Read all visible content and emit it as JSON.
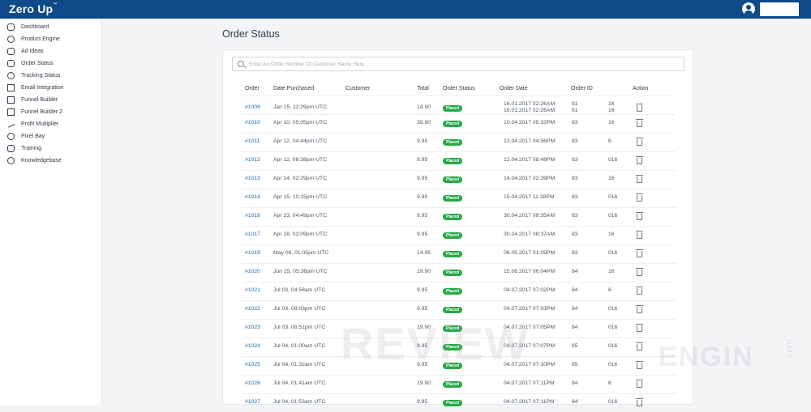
{
  "header": {
    "logo": "Zero Up",
    "logo_tm": "™"
  },
  "sidebar": {
    "items": [
      {
        "label": "Dashboard",
        "icon": "home-icon"
      },
      {
        "label": "Product Engine",
        "icon": "bell-icon"
      },
      {
        "label": "Ad Ideas",
        "icon": "image-icon"
      },
      {
        "label": "Order Status",
        "icon": "box-icon"
      },
      {
        "label": "Tracking Status",
        "icon": "location-icon"
      },
      {
        "label": "Email Integration",
        "icon": "mail-icon"
      },
      {
        "label": "Funnel Builder",
        "icon": "layout-icon"
      },
      {
        "label": "Funnel Builder 2",
        "icon": "layout-icon"
      },
      {
        "label": "Profit Multiplier",
        "icon": "trend-icon"
      },
      {
        "label": "Pixel Bay",
        "icon": "pixel-icon"
      },
      {
        "label": "Training",
        "icon": "training-icon"
      },
      {
        "label": "Knowledgebase",
        "icon": "info-icon"
      }
    ]
  },
  "main": {
    "title": "Order Status",
    "search_placeholder": "Enter An Order Number Or Customer Name Here",
    "columns": [
      "Order",
      "Date Purchased",
      "Customer",
      "Total",
      "Order Status",
      "Order Date",
      "Order ID",
      "Action"
    ],
    "rows": [
      {
        "order": "#1009",
        "date": "Jan 15, 11:29pm UTC",
        "total": "14.90",
        "status": "Placed",
        "order_date": "16.01.2017 02:26AM",
        "order_date2": "16.01.2017 02:26AM",
        "id1": "81",
        "id2": "16",
        "id1b": "81",
        "id2b": "16"
      },
      {
        "order": "#1010",
        "date": "Apr 10, 05:05pm UTC",
        "total": "39.80",
        "status": "Placed",
        "order_date": "10.04.2017 05:32PM",
        "id1": "83",
        "id2": "16"
      },
      {
        "order": "#1011",
        "date": "Apr 12, 04:44pm UTC",
        "total": "9.95",
        "status": "Placed",
        "order_date": "12.04.2017 04:56PM",
        "id1": "83",
        "id2": "6"
      },
      {
        "order": "#1012",
        "date": "Apr 12, 08:38pm UTC",
        "total": "9.95",
        "status": "Placed",
        "order_date": "12.04.2017 08:48PM",
        "id1": "83",
        "id2": "016"
      },
      {
        "order": "#1013",
        "date": "Apr 14, 02:29pm UTC",
        "total": "9.95",
        "status": "Placed",
        "order_date": "14.04.2017 02:39PM",
        "id1": "83",
        "id2": "16"
      },
      {
        "order": "#1014",
        "date": "Apr 15, 10:15pm UTC",
        "total": "9.95",
        "status": "Placed",
        "order_date": "15.04.2017 11:28PM",
        "id1": "83",
        "id2": "016"
      },
      {
        "order": "#1016",
        "date": "Apr 23, 04:49pm UTC",
        "total": "9.95",
        "status": "Placed",
        "order_date": "30.04.2017 08:35AM",
        "id1": "83",
        "id2": "016"
      },
      {
        "order": "#1017",
        "date": "Apr 28, 03:09pm UTC",
        "total": "9.95",
        "status": "Placed",
        "order_date": "30.04.2017 08:37AM",
        "id1": "83",
        "id2": "16"
      },
      {
        "order": "#1019",
        "date": "May 06, 01:05pm UTC",
        "total": "14.95",
        "status": "Placed",
        "order_date": "06.05.2017 01:09PM",
        "id1": "83",
        "id2": "016"
      },
      {
        "order": "#1020",
        "date": "Jun 15, 05:36pm UTC",
        "total": "19.90",
        "status": "Placed",
        "order_date": "15.06.2017 06:04PM",
        "id1": "84",
        "id2": "16"
      },
      {
        "order": "#1021",
        "date": "Jul 03, 04:58am UTC",
        "total": "9.95",
        "status": "Placed",
        "order_date": "04.07.2017 07:02PM",
        "id1": "84",
        "id2": "6"
      },
      {
        "order": "#1022",
        "date": "Jul 03, 08:03pm UTC",
        "total": "9.95",
        "status": "Placed",
        "order_date": "04.07.2017 07:03PM",
        "id1": "84",
        "id2": "016"
      },
      {
        "order": "#1023",
        "date": "Jul 03, 08:51pm UTC",
        "total": "19.90",
        "status": "Placed",
        "order_date": "04.07.2017 07:05PM",
        "id1": "84",
        "id2": "016"
      },
      {
        "order": "#1024",
        "date": "Jul 04, 01:00am UTC",
        "total": "9.95",
        "status": "Placed",
        "order_date": "04.07.2017 07:07PM",
        "id1": "85",
        "id2": "016"
      },
      {
        "order": "#1025",
        "date": "Jul 04, 01:32am UTC",
        "total": "9.95",
        "status": "Placed",
        "order_date": "04.07.2017 07:10PM",
        "id1": "85",
        "id2": "016"
      },
      {
        "order": "#1026",
        "date": "Jul 04, 01:41am UTC",
        "total": "19.90",
        "status": "Placed",
        "order_date": "04.07.2017 07:11PM",
        "id1": "84",
        "id2": "6"
      },
      {
        "order": "#1027",
        "date": "Jul 04, 01:53am UTC",
        "total": "9.95",
        "status": "Placed",
        "order_date": "04.07.2017 07:11PM",
        "id1": "84",
        "id2": "016"
      }
    ]
  },
  "watermark": {
    "word1": "REVIEW",
    "word2": "ENGIN",
    "word3": ".com"
  }
}
